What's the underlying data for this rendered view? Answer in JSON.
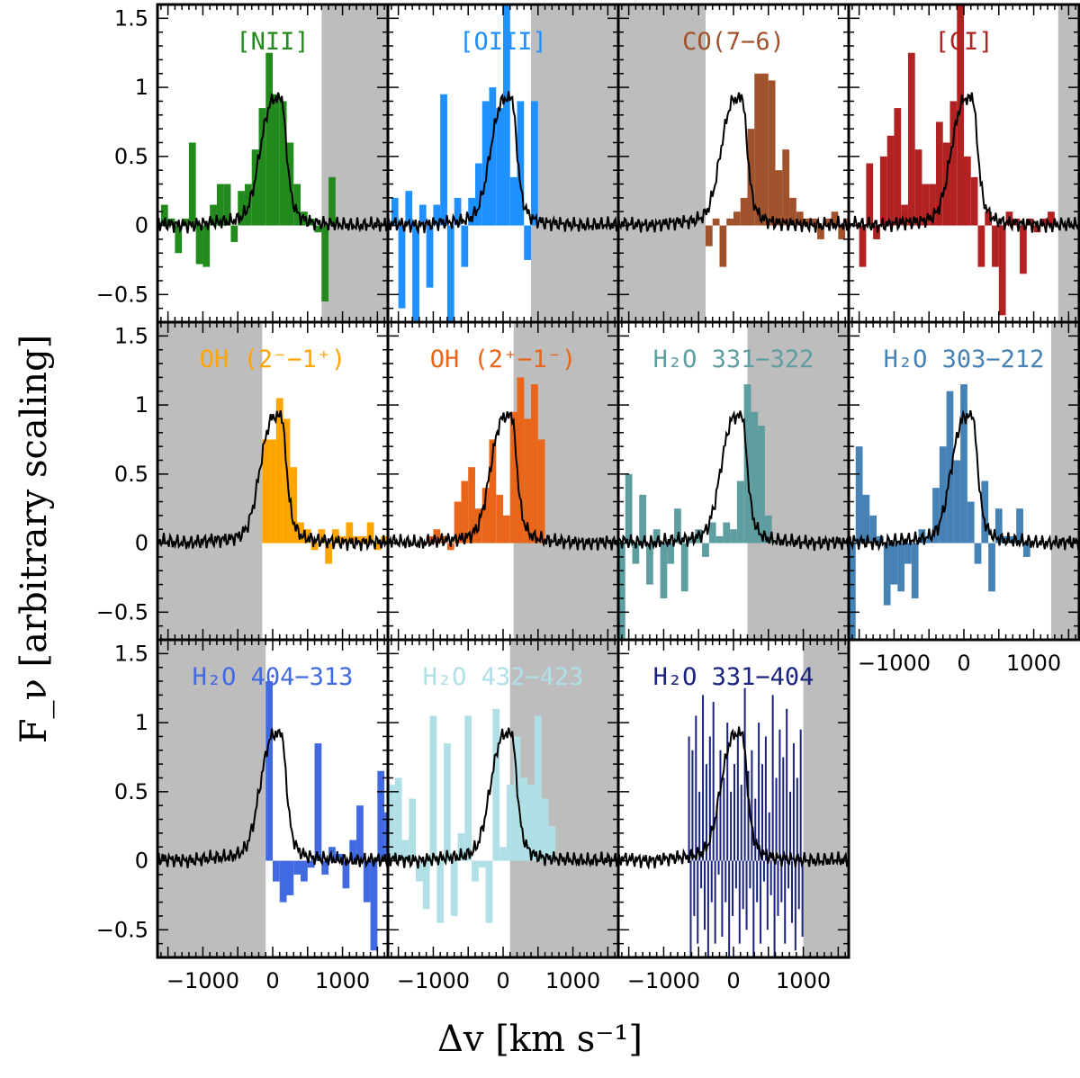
{
  "chart_data": {
    "type": "bar",
    "layout": "grid of 11 spectral line panels, 4 columns x 3 rows, shared axes",
    "xlabel": "Δv [km s⁻¹]",
    "ylabel": "F_ν [arbitrary scaling]",
    "xlim": [
      -1650,
      1650
    ],
    "ylim": [
      -0.7,
      1.6
    ],
    "yticks": [
      -0.5,
      0,
      0.5,
      1,
      1.5
    ],
    "ytick_labels": [
      "−0.5",
      "0",
      "0.5",
      "1",
      "1.5"
    ],
    "xticks": [
      -1000,
      0,
      1000
    ],
    "xtick_labels": [
      "−1000",
      "0",
      "1000"
    ],
    "bin_width": 100,
    "reference_profile": {
      "name": "reference template (black line)",
      "color": "#000000",
      "x": [
        -1650,
        -1500,
        -1200,
        -900,
        -600,
        -450,
        -360,
        -270,
        -180,
        -90,
        0,
        60,
        120,
        160,
        200,
        240,
        280,
        360,
        450,
        600,
        900,
        1200,
        1500,
        1650
      ],
      "y": [
        0.02,
        0.01,
        0.0,
        0.02,
        0.03,
        0.06,
        0.12,
        0.28,
        0.55,
        0.8,
        0.93,
        0.9,
        0.96,
        0.8,
        0.55,
        0.32,
        0.18,
        0.08,
        0.04,
        0.02,
        0.01,
        0.0,
        0.01,
        0.0
      ]
    },
    "panels": [
      {
        "title": "[NII]",
        "color": "#238b1e",
        "shade": [
          [
            700,
            1650
          ]
        ],
        "bin_start": -1600,
        "values": [
          0.15,
          0.05,
          -0.2,
          0.05,
          0.6,
          -0.28,
          -0.3,
          0.15,
          0.3,
          0.3,
          -0.12,
          0.25,
          0.3,
          0.55,
          0.85,
          1.25,
          0.95,
          0.9,
          0.6,
          0.3,
          0.1,
          0.05,
          -0.05,
          -0.55,
          0.35
        ]
      },
      {
        "title": "[OIII]",
        "color": "#1e90ff",
        "shade": [
          [
            400,
            1650
          ]
        ],
        "bin_start": -1600,
        "values": [
          0.2,
          -0.6,
          0.25,
          -0.7,
          0.15,
          -0.45,
          0.15,
          0.95,
          -0.7,
          0.2,
          -0.3,
          0.2,
          0.45,
          0.9,
          1.0,
          0.85,
          1.6,
          0.35,
          0.9,
          -0.25,
          0.9
        ]
      },
      {
        "title": "CO(7−6)",
        "color": "#a0522d",
        "shade": [
          [
            -1650,
            -400
          ]
        ],
        "bin_start": -400,
        "values": [
          -0.15,
          0.05,
          -0.3,
          0.05,
          0.1,
          0.2,
          0.7,
          1.1,
          1.1,
          1.05,
          0.4,
          0.55,
          0.2,
          0.1,
          0.05,
          0.05,
          -0.1,
          0.05,
          0.1,
          -0.1,
          0.05,
          -0.05,
          -0.05,
          -0.1,
          0.05,
          -0.2
        ]
      },
      {
        "title": "[CI]",
        "color": "#b22222",
        "shade": [
          [
            1350,
            1650
          ]
        ],
        "bin_start": -1500,
        "values": [
          -0.3,
          0.45,
          -0.1,
          0.5,
          0.65,
          0.85,
          0.15,
          1.25,
          0.55,
          0.3,
          0.3,
          0.75,
          0.6,
          0.9,
          1.6,
          0.5,
          0.35,
          -0.3,
          0.1,
          -0.3,
          -0.65,
          0.1,
          0.05,
          -0.35,
          0.05,
          -0.05,
          0.05,
          0.1
        ]
      },
      {
        "title": "OH (2⁻−1⁺)",
        "color": "#ffa500",
        "shade": [
          [
            -1650,
            -150
          ]
        ],
        "bin_start": -150,
        "values": [
          0.75,
          0.75,
          1.05,
          0.9,
          0.55,
          0.15,
          0.1,
          -0.05,
          0.1,
          -0.15,
          0.1,
          0.05,
          0.15,
          0.05,
          0.05,
          0.15,
          -0.05,
          0.05,
          0.0
        ]
      },
      {
        "title": "OH (2⁺−1⁻)",
        "color": "#e8651a",
        "shade": [
          [
            150,
            1650
          ]
        ],
        "bin_start": -1100,
        "values": [
          0.05,
          0.1,
          0.05,
          -0.05,
          0.3,
          0.45,
          0.55,
          0.25,
          0.4,
          0.75,
          0.35,
          0.2,
          0.95,
          1.2,
          0.9,
          1.15,
          0.75
        ]
      },
      {
        "title": "H₂O 331−322",
        "color": "#5f9ea0",
        "shade": [
          [
            200,
            1650
          ]
        ],
        "bin_start": -1650,
        "values": [
          -0.7,
          0.5,
          -0.15,
          0.35,
          -0.3,
          0.1,
          -0.4,
          -0.15,
          0.25,
          -0.35,
          0.05,
          0.1,
          -0.1,
          0.15,
          0.05,
          0.15,
          0.1,
          0.45,
          1.15,
          0.95,
          0.85,
          0.2
        ]
      },
      {
        "title": "H₂O 303−212",
        "color": "#4682b4",
        "shade": [
          [
            1250,
            1650
          ]
        ],
        "bin_start": -1650,
        "values": [
          -0.7,
          0.7,
          0.35,
          0.2,
          0.05,
          -0.45,
          -0.3,
          -0.35,
          -0.15,
          -0.4,
          0.1,
          0.05,
          0.4,
          0.7,
          1.1,
          0.6,
          1.15,
          0.3,
          -0.15,
          0.45,
          -0.35,
          0.25,
          0.05,
          0.05,
          0.25,
          -0.1
        ]
      },
      {
        "title": "H₂O 404−313",
        "color": "#4169e1",
        "shade": [
          [
            -1650,
            -100
          ]
        ],
        "bin_start": -100,
        "values": [
          1.3,
          -0.15,
          -0.3,
          -0.25,
          -0.1,
          -0.15,
          -0.05,
          0.85,
          -0.1,
          0.1,
          0.05,
          -0.2,
          0.15,
          0.4,
          -0.3,
          -0.65,
          0.65,
          0.35,
          0.2,
          1.05,
          -0.7,
          1.1,
          -0.3,
          1.25,
          -0.7
        ]
      },
      {
        "title": "H₂O 432−423",
        "color": "#b0e0e6",
        "shade": [
          [
            100,
            1650
          ]
        ],
        "bin_start": -1650,
        "values": [
          0.55,
          0.6,
          0.15,
          0.45,
          -0.15,
          -0.35,
          1.05,
          -0.45,
          0.85,
          -0.4,
          0.2,
          1.05,
          -0.15,
          -0.05,
          -0.45,
          1.1,
          0.1,
          0.55,
          0.9,
          0.6,
          0.55,
          1.05,
          0.45,
          0.25
        ]
      },
      {
        "title": "H₂O 331−404",
        "color": "#1a237e",
        "shade": [
          [
            1000,
            1650
          ]
        ],
        "bin_start": -650,
        "bin_width": 25,
        "style": "thin",
        "values": [
          0.9,
          -0.7,
          0.8,
          -0.4,
          1.05,
          -0.6,
          0.5,
          -0.2,
          1.2,
          -0.5,
          0.7,
          -0.7,
          0.9,
          -0.3,
          1.15,
          -0.6,
          0.4,
          -0.1,
          0.8,
          -0.55,
          0.6,
          -0.3,
          1.0,
          -0.7,
          0.5,
          -0.4,
          0.7,
          -0.2,
          0.9,
          -0.6,
          0.55,
          -0.35,
          1.25,
          -0.5,
          0.65,
          -0.2,
          0.8,
          -0.7,
          0.45,
          -0.3,
          1.0,
          -0.6,
          0.7,
          -0.15,
          0.9,
          -0.5,
          0.35,
          -0.25,
          1.2,
          -0.7,
          0.6,
          -0.4,
          0.95,
          -0.3,
          0.75,
          -0.6,
          1.1,
          -0.2,
          0.5,
          -0.45,
          0.85,
          -0.65,
          0.6,
          -0.35,
          0.95,
          -0.55
        ]
      }
    ]
  }
}
